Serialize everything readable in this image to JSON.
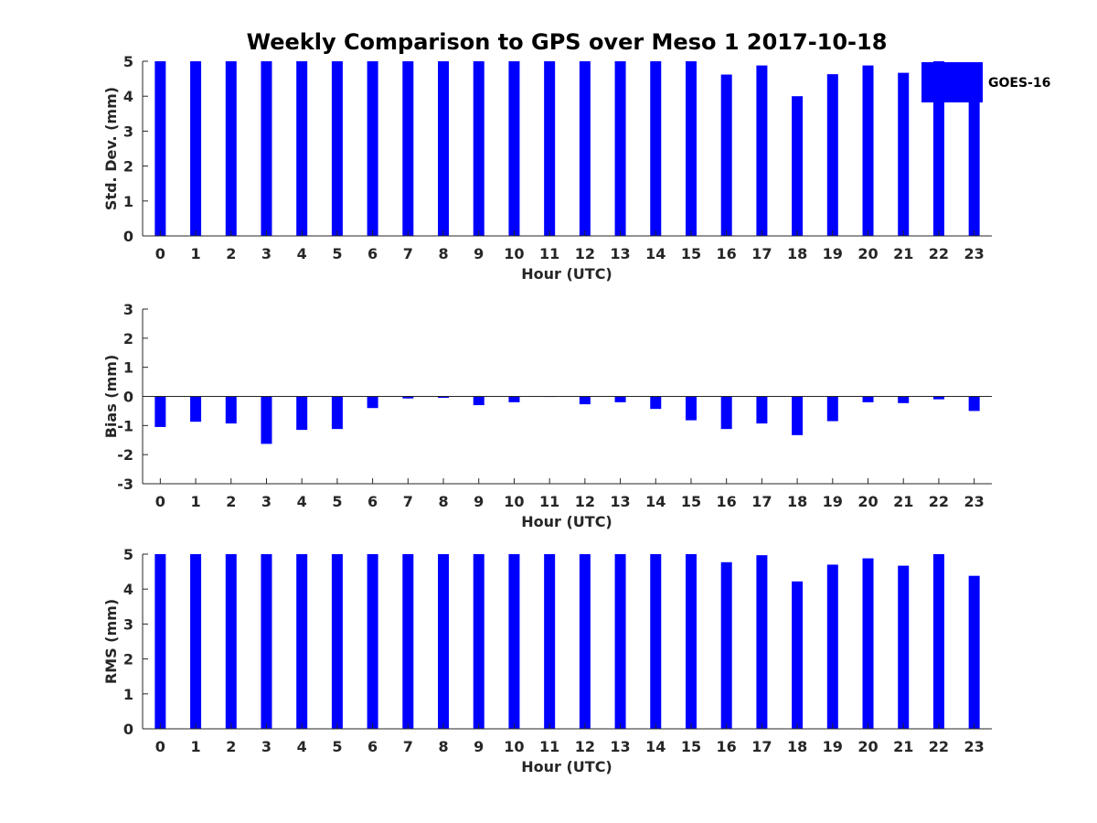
{
  "title": "Weekly Comparison to GPS over Meso 1 2017-10-18",
  "colors": {
    "bar": "#0000ff",
    "axis": "#262626",
    "background": "#ffffff"
  },
  "legend": {
    "label": "GOES-16",
    "placement": "top-right"
  },
  "chart_data": [
    {
      "type": "bar",
      "name": "std-dev",
      "series": [
        {
          "name": "GOES-16",
          "values": [
            5,
            5,
            5,
            5,
            5,
            5,
            5,
            5,
            5,
            5,
            5,
            5,
            5,
            5,
            5,
            5,
            4.62,
            4.88,
            4.0,
            4.63,
            4.88,
            4.67,
            5,
            3.9
          ]
        }
      ],
      "categories": [
        "0",
        "1",
        "2",
        "3",
        "4",
        "5",
        "6",
        "7",
        "8",
        "9",
        "10",
        "11",
        "12",
        "13",
        "14",
        "15",
        "16",
        "17",
        "18",
        "19",
        "20",
        "21",
        "22",
        "23"
      ],
      "xlabel": "Hour (UTC)",
      "ylabel": "Std. Dev. (mm)",
      "ylim": [
        0,
        5
      ],
      "yticks": [
        "0",
        "1",
        "2",
        "3",
        "4",
        "5"
      ],
      "xlim": [
        -0.5,
        23.5
      ],
      "grid": false
    },
    {
      "type": "bar",
      "name": "bias",
      "series": [
        {
          "name": "GOES-16",
          "values": [
            -1.05,
            -0.87,
            -0.93,
            -1.63,
            -1.15,
            -1.12,
            -0.4,
            -0.07,
            -0.05,
            -0.3,
            -0.2,
            0.0,
            -0.27,
            -0.2,
            -0.43,
            -0.82,
            -1.12,
            -0.93,
            -1.33,
            -0.85,
            -0.2,
            -0.23,
            -0.1,
            -0.5
          ]
        }
      ],
      "categories": [
        "0",
        "1",
        "2",
        "3",
        "4",
        "5",
        "6",
        "7",
        "8",
        "9",
        "10",
        "11",
        "12",
        "13",
        "14",
        "15",
        "16",
        "17",
        "18",
        "19",
        "20",
        "21",
        "22",
        "23"
      ],
      "xlabel": "Hour (UTC)",
      "ylabel": "Bias (mm)",
      "ylim": [
        -3,
        3
      ],
      "yticks": [
        "-3",
        "-2",
        "-1",
        "0",
        "1",
        "2",
        "3"
      ],
      "xlim": [
        -0.5,
        23.5
      ],
      "grid": false
    },
    {
      "type": "bar",
      "name": "rms",
      "series": [
        {
          "name": "GOES-16",
          "values": [
            5,
            5,
            5,
            5,
            5,
            5,
            5,
            5,
            5,
            5,
            5,
            5,
            5,
            5,
            5,
            5,
            4.77,
            4.97,
            4.22,
            4.7,
            4.88,
            4.67,
            5,
            4.38
          ]
        }
      ],
      "categories": [
        "0",
        "1",
        "2",
        "3",
        "4",
        "5",
        "6",
        "7",
        "8",
        "9",
        "10",
        "11",
        "12",
        "13",
        "14",
        "15",
        "16",
        "17",
        "18",
        "19",
        "20",
        "21",
        "22",
        "23"
      ],
      "xlabel": "Hour (UTC)",
      "ylabel": "RMS (mm)",
      "ylim": [
        0,
        5
      ],
      "yticks": [
        "0",
        "1",
        "2",
        "3",
        "4",
        "5"
      ],
      "xlim": [
        -0.5,
        23.5
      ],
      "grid": false
    }
  ]
}
